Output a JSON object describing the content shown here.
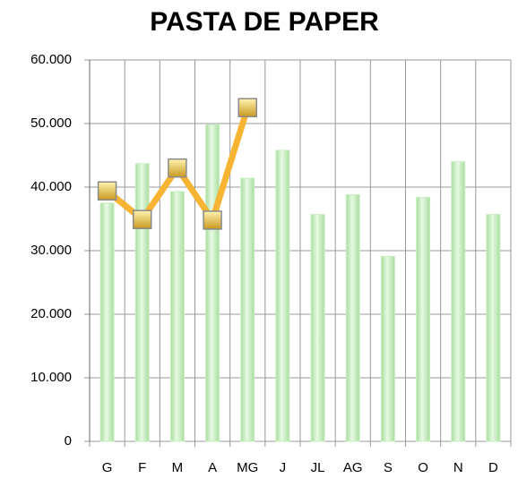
{
  "chart_data": {
    "type": "bar-line",
    "title": "PASTA DE PAPER",
    "categories": [
      "G",
      "F",
      "M",
      "A",
      "MG",
      "J",
      "JL",
      "AG",
      "S",
      "O",
      "N",
      "D"
    ],
    "series": [
      {
        "type": "bar",
        "color": "#c8f0c0",
        "values": [
          37500,
          43700,
          39300,
          49800,
          41400,
          45800,
          35700,
          38800,
          29100,
          38400,
          44000,
          35700
        ]
      },
      {
        "type": "line",
        "color": "#f7b433",
        "values": [
          39400,
          34900,
          43000,
          34800,
          52500,
          null,
          null,
          null,
          null,
          null,
          null,
          null
        ]
      }
    ],
    "ylim": [
      0,
      60000
    ],
    "yticks": [
      0,
      {
        "value": 10000,
        "label": "10.000"
      },
      {
        "value": 20000,
        "label": "20.000"
      },
      {
        "value": 30000,
        "label": "30.000"
      },
      {
        "value": 40000,
        "label": "40.000"
      },
      {
        "value": 50000,
        "label": "50.000"
      },
      {
        "value": 60000,
        "label": "60.000"
      }
    ],
    "grid": true
  }
}
